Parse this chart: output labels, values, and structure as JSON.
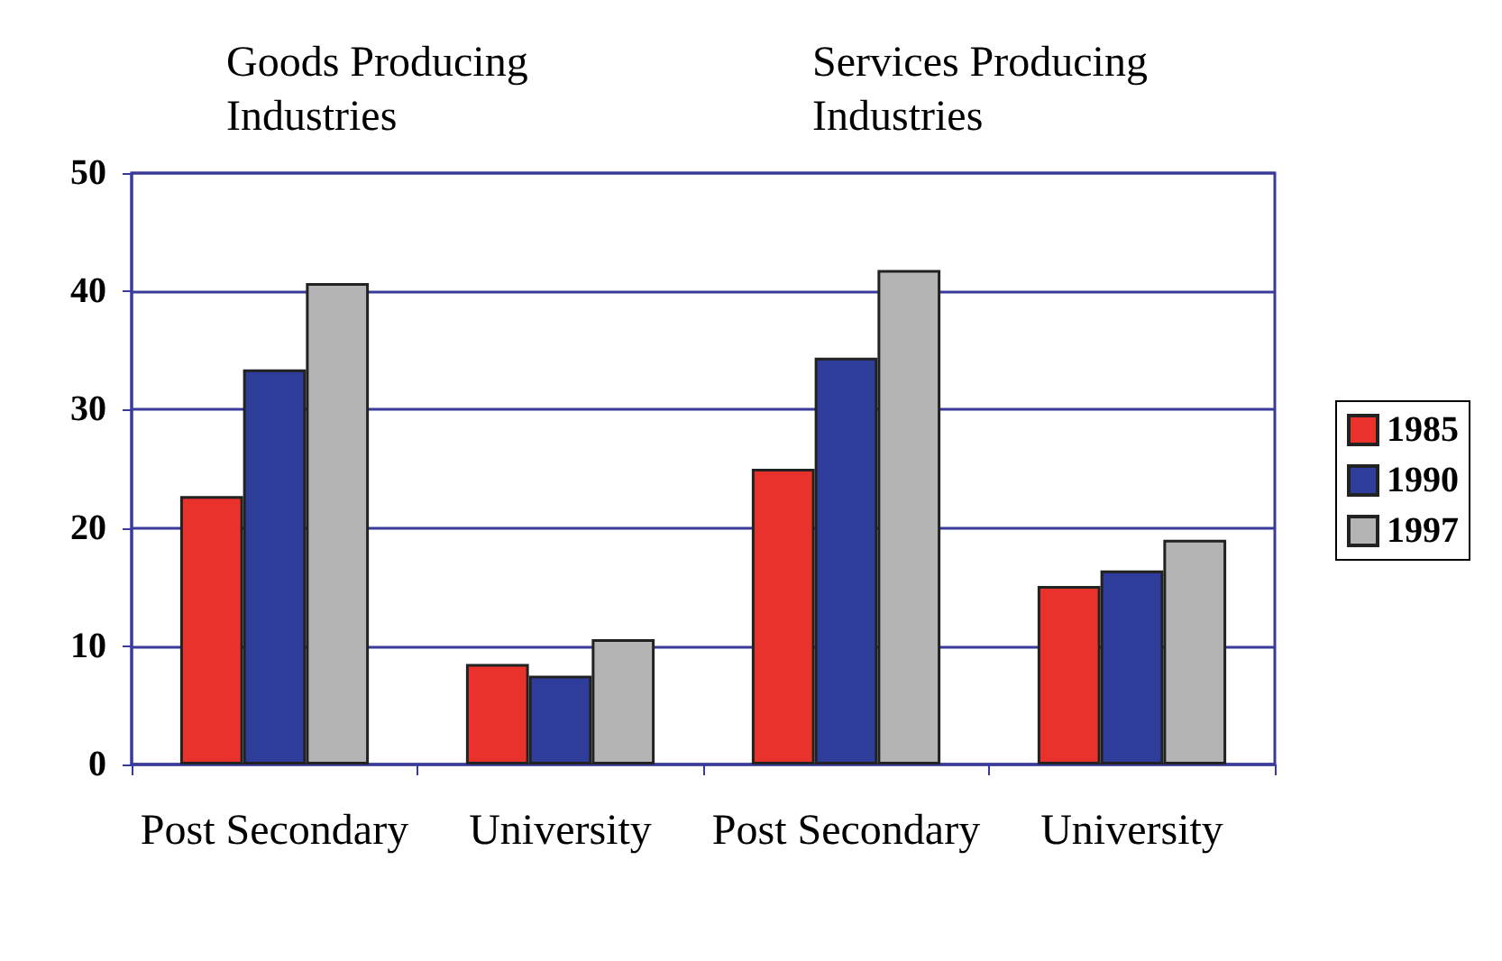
{
  "chart_data": {
    "type": "bar",
    "categories": [
      "Post Secondary",
      "University",
      "Post Secondary",
      "University"
    ],
    "series": [
      {
        "name": "1985",
        "color": "#e8322b",
        "values": [
          22.7,
          8.5,
          25.0,
          15.1
        ]
      },
      {
        "name": "1990",
        "color": "#2e3d9a",
        "values": [
          33.4,
          7.5,
          34.4,
          16.4
        ]
      },
      {
        "name": "1997",
        "color": "#b4b4b4",
        "values": [
          40.7,
          10.6,
          41.8,
          19.0
        ]
      }
    ],
    "ylim": [
      0,
      50
    ],
    "yticks": [
      0,
      10,
      20,
      30,
      40,
      50
    ],
    "grid": "y",
    "legend": "right",
    "annotations": [
      "Goods Producing Industries",
      "Services Producing Industries"
    ]
  }
}
